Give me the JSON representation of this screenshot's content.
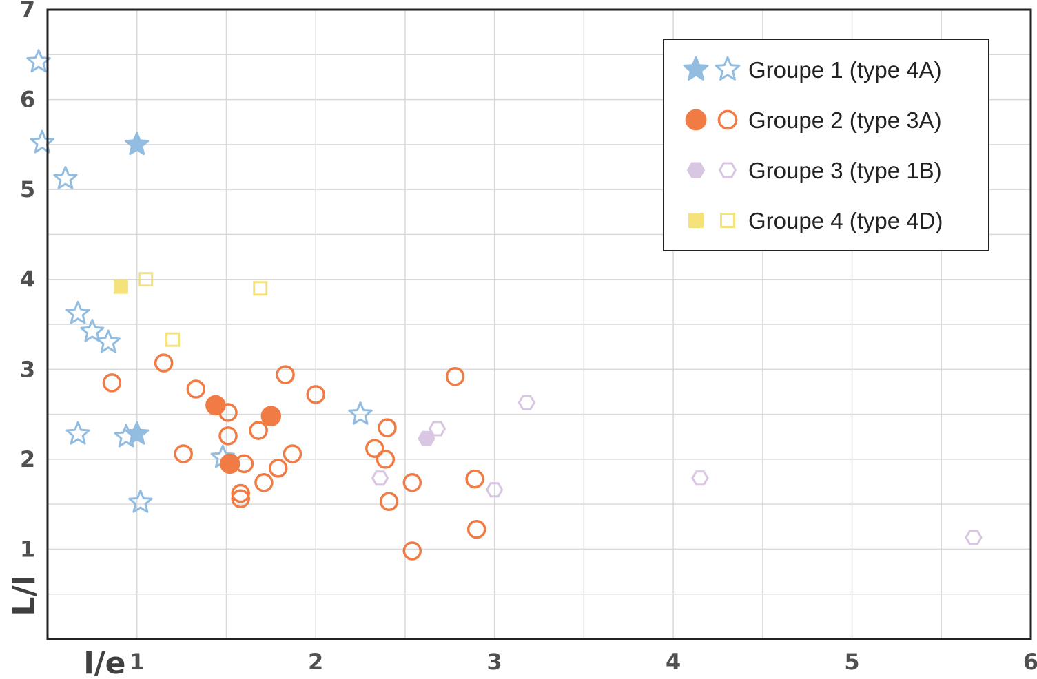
{
  "chart_data": {
    "type": "scatter",
    "xlabel": "l/e",
    "ylabel": "L/l",
    "xlim": [
      0.5,
      6.0
    ],
    "ylim": [
      0.0,
      7.0
    ],
    "x_ticks": [
      1,
      2,
      3,
      4,
      5,
      6
    ],
    "y_ticks": [
      1,
      2,
      3,
      4,
      5,
      6,
      7
    ],
    "grid": true,
    "legend_position": "top-right",
    "series": [
      {
        "name": "Groupe 1 (type 4A)",
        "color": "#93bde0",
        "marker": "star",
        "filled": [
          [
            1.0,
            5.5
          ],
          [
            1.0,
            2.28
          ]
        ],
        "open": [
          [
            0.45,
            6.42
          ],
          [
            0.47,
            5.52
          ],
          [
            0.6,
            5.12
          ],
          [
            0.67,
            3.62
          ],
          [
            0.75,
            3.42
          ],
          [
            0.84,
            3.3
          ],
          [
            0.67,
            2.28
          ],
          [
            0.94,
            2.25
          ],
          [
            1.02,
            1.52
          ],
          [
            1.48,
            2.02
          ],
          [
            2.25,
            2.5
          ]
        ]
      },
      {
        "name": "Groupe 2 (type 3A)",
        "color": "#f07b45",
        "marker": "circle",
        "filled": [
          [
            1.44,
            2.6
          ],
          [
            1.52,
            1.95
          ],
          [
            1.75,
            2.48
          ]
        ],
        "open": [
          [
            0.86,
            2.85
          ],
          [
            1.15,
            3.07
          ],
          [
            1.26,
            2.06
          ],
          [
            1.33,
            2.78
          ],
          [
            1.51,
            2.52
          ],
          [
            1.51,
            2.26
          ],
          [
            1.58,
            1.62
          ],
          [
            1.58,
            1.56
          ],
          [
            1.6,
            1.95
          ],
          [
            1.68,
            2.32
          ],
          [
            1.71,
            1.74
          ],
          [
            1.79,
            1.9
          ],
          [
            1.83,
            2.94
          ],
          [
            1.87,
            2.06
          ],
          [
            2.0,
            2.72
          ],
          [
            2.33,
            2.12
          ],
          [
            2.39,
            2.0
          ],
          [
            2.4,
            2.35
          ],
          [
            2.41,
            1.53
          ],
          [
            2.54,
            1.74
          ],
          [
            2.54,
            0.98
          ],
          [
            2.78,
            2.92
          ],
          [
            2.89,
            1.78
          ],
          [
            2.9,
            1.22
          ]
        ]
      },
      {
        "name": "Groupe 3 (type 1B)",
        "color": "#d9c6e2",
        "marker": "hexagon",
        "filled": [
          [
            2.62,
            2.23
          ]
        ],
        "open": [
          [
            2.36,
            1.79
          ],
          [
            2.68,
            2.34
          ],
          [
            3.0,
            1.66
          ],
          [
            3.18,
            2.63
          ],
          [
            4.15,
            1.79
          ],
          [
            5.68,
            1.13
          ]
        ]
      },
      {
        "name": "Groupe 4 (type 4D)",
        "color": "#f5e27a",
        "marker": "square",
        "filled": [
          [
            0.91,
            3.92
          ]
        ],
        "open": [
          [
            1.05,
            4.0
          ],
          [
            1.2,
            3.33
          ],
          [
            1.69,
            3.9
          ]
        ]
      }
    ]
  },
  "colors": {
    "background": "#ffffff",
    "grid": "#d9d9d9",
    "frame": "#222222",
    "tick_text": "#505050"
  }
}
